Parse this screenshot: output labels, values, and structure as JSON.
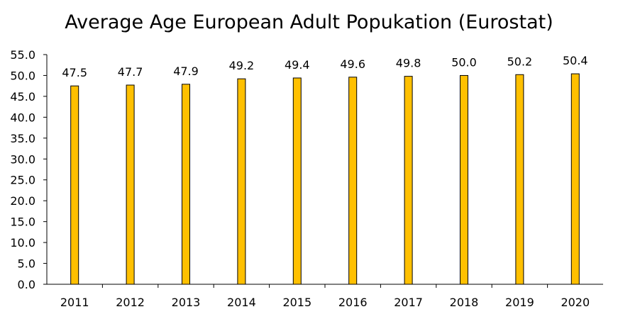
{
  "chart_data": {
    "type": "bar",
    "title": "Average Age European Adult Popukation (Eurostat)",
    "categories": [
      "2011",
      "2012",
      "2013",
      "2014",
      "2015",
      "2016",
      "2017",
      "2018",
      "2019",
      "2020"
    ],
    "values": [
      47.5,
      47.7,
      47.9,
      49.2,
      49.4,
      49.6,
      49.8,
      50.0,
      50.2,
      50.4
    ],
    "value_labels": [
      "47.5",
      "47.7",
      "47.9",
      "49.2",
      "49.4",
      "49.6",
      "49.8",
      "50.0",
      "50.2",
      "50.4"
    ],
    "ylim": [
      0,
      55
    ],
    "yticks": [
      "0.0",
      "5.0",
      "10.0",
      "15.0",
      "20.0",
      "25.0",
      "30.0",
      "35.0",
      "40.0",
      "45.0",
      "50.0",
      "55.0"
    ],
    "xlabel": "",
    "ylabel": "",
    "grid": false,
    "legend": "none",
    "bar_color": "#FFC000",
    "bar_edge_color": "#000000"
  }
}
